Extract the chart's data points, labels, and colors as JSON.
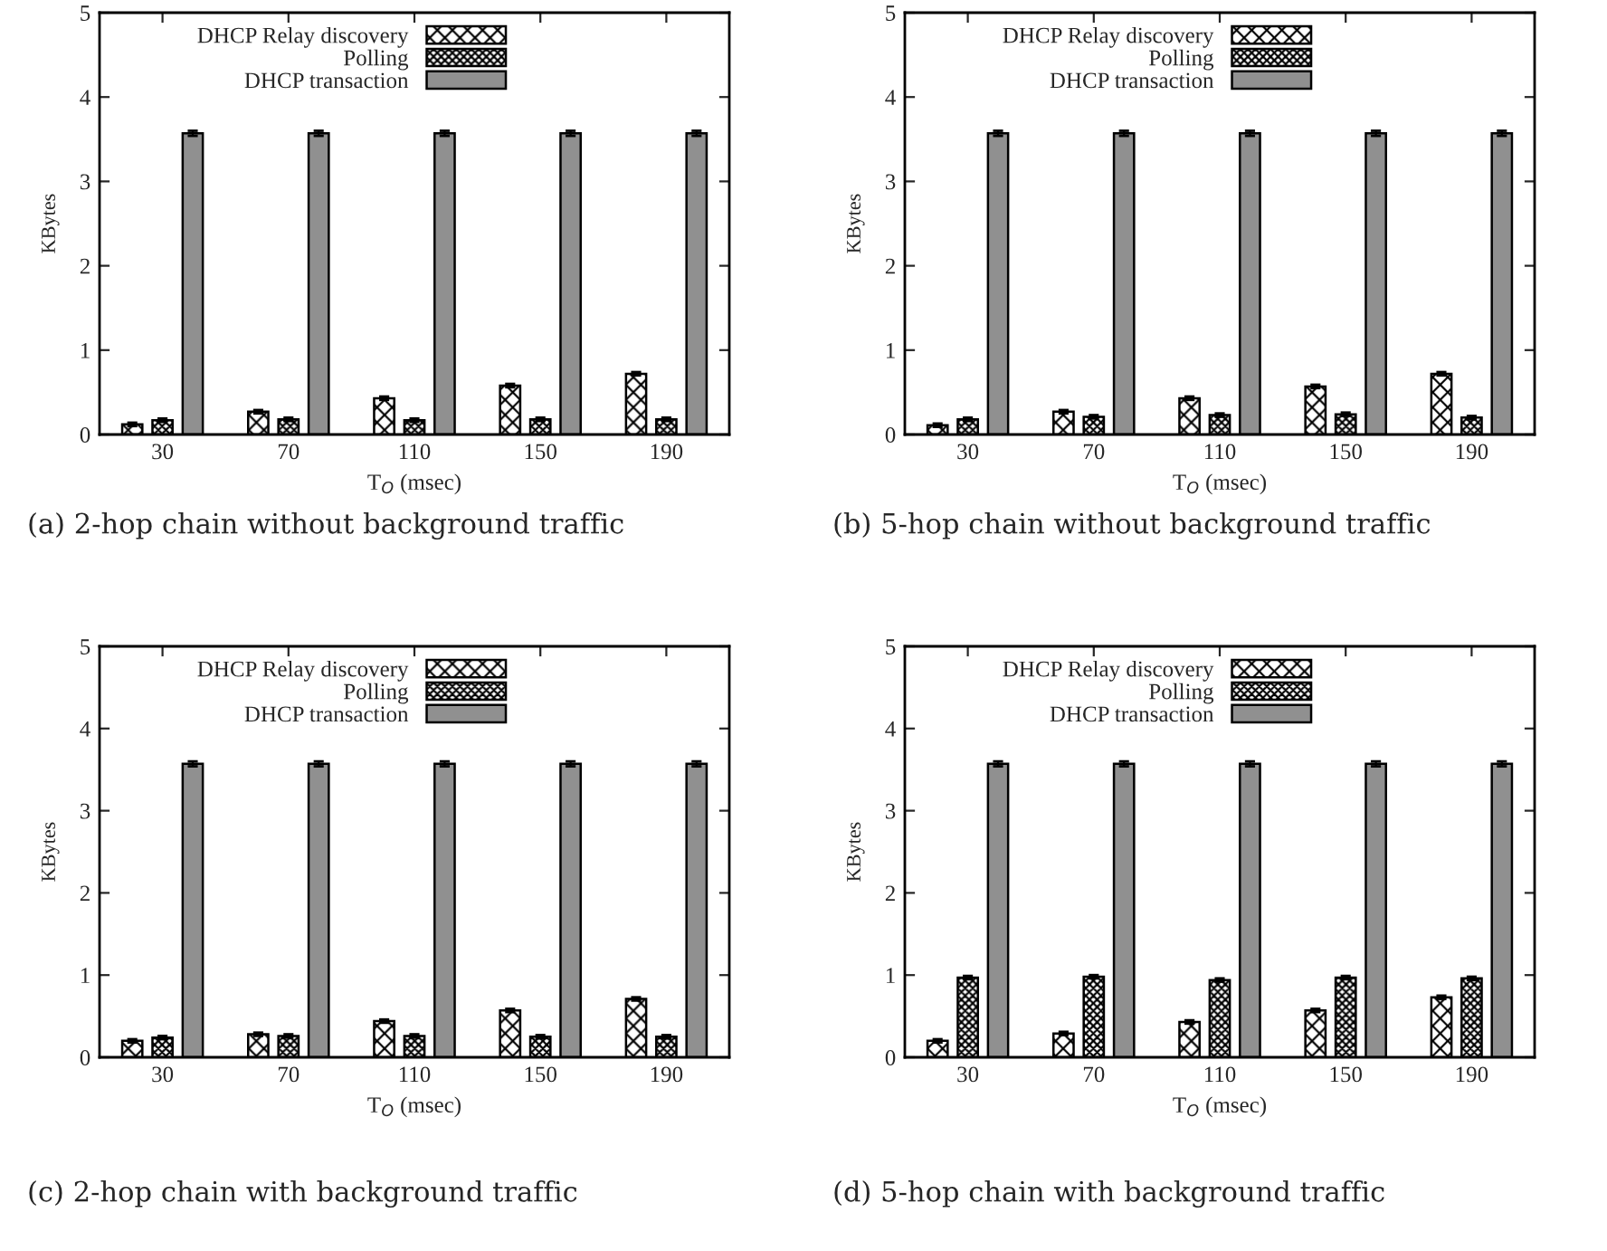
{
  "chart_data": [
    {
      "type": "bar",
      "xlabel": "T$_{O}$ (msec)",
      "ylabel": "KBytes",
      "categories": [
        "30",
        "70",
        "110",
        "150",
        "190"
      ],
      "ylim": [
        0,
        5
      ],
      "yticks": [
        0,
        1,
        2,
        3,
        4,
        5
      ],
      "legend": "top",
      "grid": false,
      "annotations": [
        "(a) 2-hop chain without background traffic"
      ],
      "series": [
        {
          "name": "DHCP Relay discovery",
          "color": "#000000",
          "values": [
            0.12,
            0.27,
            0.43,
            0.58,
            0.72
          ],
          "errors": [
            0.02,
            0.02,
            0.02,
            0.02,
            0.02
          ]
        },
        {
          "name": "Polling",
          "color": "#000000",
          "values": [
            0.17,
            0.18,
            0.17,
            0.18,
            0.18
          ],
          "errors": [
            0.02,
            0.02,
            0.02,
            0.02,
            0.02
          ]
        },
        {
          "name": "DHCP transaction",
          "color": "#909090",
          "values": [
            3.57,
            3.57,
            3.57,
            3.57,
            3.57
          ],
          "errors": [
            0.03,
            0.03,
            0.03,
            0.03,
            0.03
          ]
        }
      ]
    },
    {
      "type": "bar",
      "xlabel": "T$_{O}$ (msec)",
      "ylabel": "KBytes",
      "categories": [
        "30",
        "70",
        "110",
        "150",
        "190"
      ],
      "ylim": [
        0,
        5
      ],
      "yticks": [
        0,
        1,
        2,
        3,
        4,
        5
      ],
      "legend": "top",
      "grid": false,
      "annotations": [
        "(b) 5-hop chain without background traffic"
      ],
      "series": [
        {
          "name": "DHCP Relay discovery",
          "color": "#000000",
          "values": [
            0.11,
            0.27,
            0.43,
            0.57,
            0.72
          ],
          "errors": [
            0.02,
            0.02,
            0.02,
            0.02,
            0.02
          ]
        },
        {
          "name": "Polling",
          "color": "#000000",
          "values": [
            0.18,
            0.21,
            0.23,
            0.24,
            0.2
          ],
          "errors": [
            0.02,
            0.02,
            0.02,
            0.02,
            0.02
          ]
        },
        {
          "name": "DHCP transaction",
          "color": "#909090",
          "values": [
            3.57,
            3.57,
            3.57,
            3.57,
            3.57
          ],
          "errors": [
            0.03,
            0.03,
            0.03,
            0.03,
            0.03
          ]
        }
      ]
    },
    {
      "type": "bar",
      "xlabel": "T$_{O}$ (msec)",
      "ylabel": "KBytes",
      "categories": [
        "30",
        "70",
        "110",
        "150",
        "190"
      ],
      "ylim": [
        0,
        5
      ],
      "yticks": [
        0,
        1,
        2,
        3,
        4,
        5
      ],
      "legend": "top",
      "grid": false,
      "annotations": [
        "(c) 2-hop chain with background traffic"
      ],
      "series": [
        {
          "name": "DHCP Relay discovery",
          "color": "#000000",
          "values": [
            0.2,
            0.28,
            0.44,
            0.57,
            0.71
          ],
          "errors": [
            0.02,
            0.02,
            0.02,
            0.02,
            0.02
          ]
        },
        {
          "name": "Polling",
          "color": "#000000",
          "values": [
            0.24,
            0.26,
            0.26,
            0.25,
            0.25
          ],
          "errors": [
            0.02,
            0.02,
            0.02,
            0.02,
            0.02
          ]
        },
        {
          "name": "DHCP transaction",
          "color": "#909090",
          "values": [
            3.57,
            3.57,
            3.57,
            3.57,
            3.57
          ],
          "errors": [
            0.03,
            0.03,
            0.03,
            0.03,
            0.03
          ]
        }
      ]
    },
    {
      "type": "bar",
      "xlabel": "T$_{O}$ (msec)",
      "ylabel": "KBytes",
      "categories": [
        "30",
        "70",
        "110",
        "150",
        "190"
      ],
      "ylim": [
        0,
        5
      ],
      "yticks": [
        0,
        1,
        2,
        3,
        4,
        5
      ],
      "legend": "top",
      "grid": false,
      "annotations": [
        "(d) 5-hop chain with background traffic"
      ],
      "series": [
        {
          "name": "DHCP Relay discovery",
          "color": "#000000",
          "values": [
            0.2,
            0.29,
            0.43,
            0.57,
            0.73
          ],
          "errors": [
            0.02,
            0.02,
            0.02,
            0.02,
            0.02
          ]
        },
        {
          "name": "Polling",
          "color": "#000000",
          "values": [
            0.97,
            0.98,
            0.94,
            0.97,
            0.96
          ],
          "errors": [
            0.02,
            0.02,
            0.02,
            0.02,
            0.02
          ]
        },
        {
          "name": "DHCP transaction",
          "color": "#909090",
          "values": [
            3.57,
            3.57,
            3.57,
            3.57,
            3.57
          ],
          "errors": [
            0.03,
            0.03,
            0.03,
            0.03,
            0.03
          ]
        }
      ]
    }
  ]
}
